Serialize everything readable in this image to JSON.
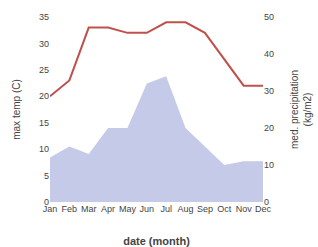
{
  "chart_data": {
    "type": "line",
    "xlabel": "date (month)",
    "ylabel": "max temp (C)",
    "y2label": "med. precipitation\n(kg/m2)",
    "categories": [
      "Jan",
      "Feb",
      "Mar",
      "Apr",
      "May",
      "Jun",
      "Jul",
      "Aug",
      "Sep",
      "Oct",
      "Nov",
      "Dec"
    ],
    "series": [
      {
        "type": "line",
        "color": "#c0504d",
        "values": [
          20,
          23,
          33,
          33,
          32,
          32,
          34,
          34,
          32,
          27,
          22,
          22
        ]
      },
      {
        "type": "area",
        "axis": "y2",
        "color": "#c5cae9",
        "values": [
          12,
          15,
          13,
          20,
          20,
          32,
          34,
          20,
          15,
          10,
          11,
          11
        ]
      }
    ],
    "ylim": [
      0,
      35
    ],
    "yticks": [
      0,
      5,
      10,
      15,
      20,
      25,
      30,
      35
    ],
    "y2lim": [
      0,
      50
    ],
    "y2ticks": [
      0,
      10,
      20,
      30,
      40,
      50
    ],
    "grid": false
  }
}
